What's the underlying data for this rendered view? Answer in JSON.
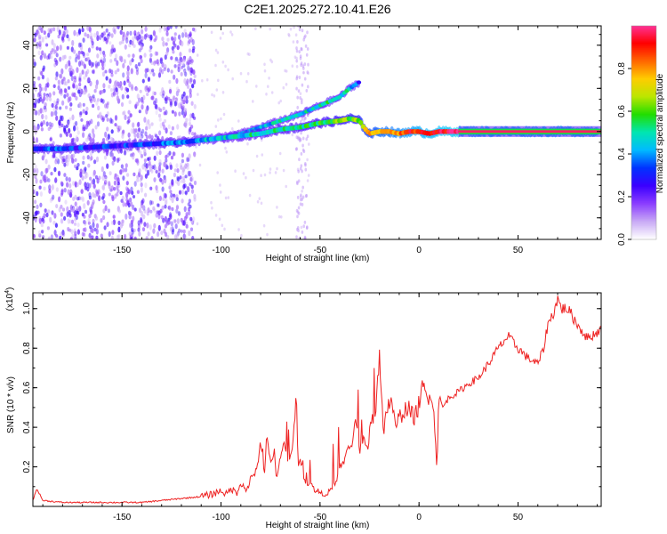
{
  "title": "C2E1.2025.272.10.41.E26",
  "chart_data": [
    {
      "type": "heatmap",
      "xlabel": "Height of straight line (km)",
      "ylabel": "Frequency (Hz)",
      "xlim": [
        -195,
        92
      ],
      "ylim": [
        -50,
        49
      ],
      "xticks": [
        -150,
        -100,
        -50,
        0,
        50
      ],
      "xtick_labels": [
        "-150",
        "-100",
        "-50",
        "0",
        "50"
      ],
      "yticks": [
        -40,
        -20,
        0,
        20,
        40
      ],
      "ytick_labels": [
        "-40",
        "-20",
        "0",
        "20",
        "40"
      ],
      "colorbar": {
        "label": "Normalized spectral amplitude",
        "range": [
          0,
          1
        ],
        "ticks": [
          0.0,
          0.2,
          0.4,
          0.6,
          0.8
        ],
        "tick_labels": [
          "0.0",
          "0.2",
          "0.4",
          "0.6",
          "0.8"
        ],
        "colormap": [
          "#ffffff",
          "#c7a8f5",
          "#8a3cff",
          "#3a00ff",
          "#0033ff",
          "#00bbff",
          "#00e6b0",
          "#22dd00",
          "#bbe600",
          "#ffcc00",
          "#ff6600",
          "#ff0000",
          "#ff3399"
        ]
      },
      "ridge_main": {
        "x": [
          -195,
          -180,
          -160,
          -140,
          -120,
          -110,
          -100,
          -90,
          -80,
          -70,
          -60,
          -50,
          -40,
          -35,
          -30,
          -28,
          -25,
          -20,
          -15,
          -10,
          -5,
          0,
          5,
          10,
          15,
          20,
          30,
          50,
          70,
          90
        ],
        "y": [
          -8,
          -8,
          -7,
          -6,
          -5,
          -4,
          -3,
          -2,
          -1,
          1,
          2,
          4,
          5,
          6,
          5,
          2,
          -1,
          0,
          0,
          -1,
          0,
          0,
          -1,
          0,
          0,
          0,
          0,
          0,
          0,
          0
        ],
        "amplitude": [
          0.35,
          0.3,
          0.3,
          0.3,
          0.35,
          0.4,
          0.45,
          0.45,
          0.5,
          0.5,
          0.5,
          0.55,
          0.6,
          0.62,
          0.65,
          0.7,
          0.75,
          0.8,
          0.82,
          0.85,
          0.88,
          0.9,
          0.92,
          0.93,
          0.95,
          0.97,
          0.98,
          0.99,
          1.0,
          1.0
        ]
      },
      "ridge_branch": {
        "x": [
          -100,
          -90,
          -80,
          -70,
          -60,
          -55,
          -50,
          -45,
          -40,
          -35,
          -30
        ],
        "y": [
          -3,
          -1,
          2,
          5,
          8,
          10,
          12,
          14,
          16,
          20,
          23
        ],
        "amplitude": [
          0.4,
          0.4,
          0.45,
          0.45,
          0.45,
          0.45,
          0.5,
          0.5,
          0.5,
          0.45,
          0.3
        ]
      }
    },
    {
      "type": "line",
      "xlabel": "Height of straight line (km)",
      "ylabel": "SNR (10 * v/v)",
      "yscale_label": "(x10",
      "yscale_exp": "4",
      "xlim": [
        -195,
        92
      ],
      "ylim": [
        0,
        1.08
      ],
      "xticks": [
        -150,
        -100,
        -50,
        0,
        50
      ],
      "xtick_labels": [
        "-150",
        "-100",
        "-50",
        "0",
        "50"
      ],
      "yticks": [
        0.2,
        0.4,
        0.6,
        0.8,
        1.0
      ],
      "ytick_labels": [
        "0.2",
        "0.4",
        "0.6",
        "0.8",
        "1.0"
      ],
      "color": "#ee2222",
      "series": [
        {
          "x": [
            -195,
            -193,
            -190,
            -180,
            -170,
            -160,
            -150,
            -140,
            -130,
            -120,
            -110,
            -105,
            -100,
            -97,
            -95,
            -92,
            -90,
            -87,
            -85,
            -82,
            -80,
            -78,
            -77,
            -75,
            -73,
            -72,
            -70,
            -68,
            -66,
            -64,
            -62,
            -61,
            -60,
            -58,
            -56,
            -54,
            -52,
            -50,
            -48,
            -46,
            -44,
            -42,
            -40,
            -38,
            -36,
            -34,
            -32,
            -30,
            -28,
            -26,
            -24,
            -22,
            -21,
            -20,
            -18,
            -16,
            -14,
            -12,
            -10,
            -8,
            -6,
            -4,
            -2,
            0,
            2,
            4,
            6,
            8,
            9,
            10,
            12,
            15,
            20,
            25,
            30,
            35,
            40,
            45,
            50,
            55,
            60,
            63,
            65,
            68,
            70,
            72,
            75,
            80,
            85,
            90,
            92
          ],
          "values": [
            0.03,
            0.09,
            0.03,
            0.02,
            0.02,
            0.02,
            0.02,
            0.02,
            0.03,
            0.04,
            0.05,
            0.06,
            0.08,
            0.06,
            0.09,
            0.07,
            0.12,
            0.08,
            0.14,
            0.18,
            0.33,
            0.16,
            0.35,
            0.22,
            0.28,
            0.15,
            0.26,
            0.32,
            0.2,
            0.3,
            0.55,
            0.18,
            0.25,
            0.14,
            0.12,
            0.1,
            0.08,
            0.07,
            0.06,
            0.07,
            0.09,
            0.12,
            0.2,
            0.22,
            0.3,
            0.3,
            0.45,
            0.28,
            0.34,
            0.3,
            0.42,
            0.5,
            0.6,
            0.75,
            0.35,
            0.5,
            0.55,
            0.4,
            0.45,
            0.48,
            0.5,
            0.47,
            0.45,
            0.52,
            0.6,
            0.55,
            0.6,
            0.4,
            0.2,
            0.56,
            0.5,
            0.55,
            0.58,
            0.62,
            0.65,
            0.72,
            0.8,
            0.86,
            0.8,
            0.75,
            0.72,
            0.8,
            0.92,
            0.98,
            1.05,
            1.0,
            1.0,
            0.92,
            0.85,
            0.88,
            0.9
          ]
        }
      ]
    }
  ]
}
